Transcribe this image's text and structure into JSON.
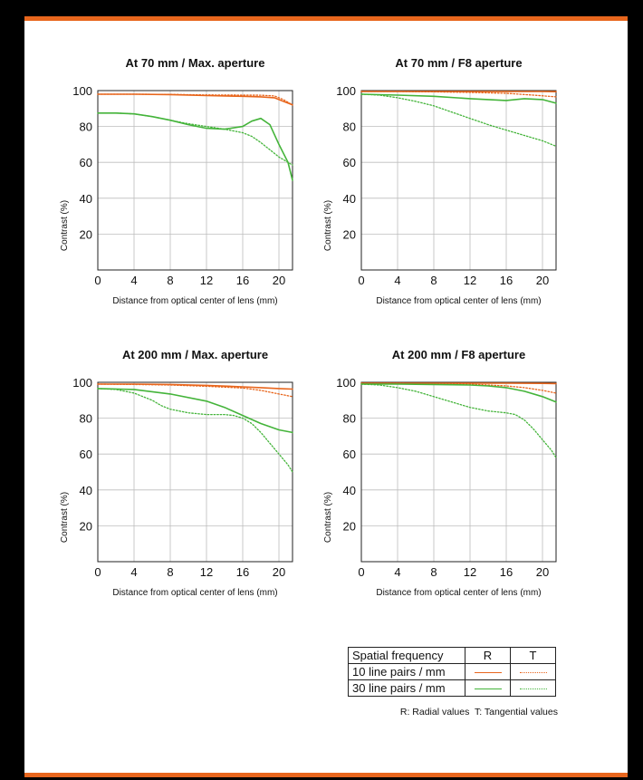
{
  "colors": {
    "accent": "#e8661d",
    "lp10": "#e8661d",
    "lp30": "#44b43a"
  },
  "legend": {
    "header": {
      "freq": "Spatial frequency",
      "r": "R",
      "t": "T"
    },
    "rows": [
      {
        "label": "10 line pairs / mm"
      },
      {
        "label": "30 line pairs / mm"
      }
    ],
    "note": "R: Radial values  T: Tangential values"
  },
  "chart_data": [
    {
      "type": "line",
      "title": "At 70 mm / Max. aperture",
      "xlabel": "Distance from optical center of lens (mm)",
      "ylabel": "Contrast (%)",
      "xlim": [
        0,
        21.5
      ],
      "ylim": [
        0,
        100
      ],
      "xticks": [
        0,
        4,
        8,
        12,
        16,
        20
      ],
      "yticks": [
        20,
        40,
        60,
        80,
        100
      ],
      "grid": true,
      "series": [
        {
          "freq": "10",
          "kind": "R",
          "points": [
            [
              0,
              98
            ],
            [
              4,
              98
            ],
            [
              8,
              97.8
            ],
            [
              12,
              97.2
            ],
            [
              16,
              96.8
            ],
            [
              18,
              96.5
            ],
            [
              19.5,
              96
            ],
            [
              20.5,
              94
            ],
            [
              21.5,
              92
            ]
          ]
        },
        {
          "freq": "10",
          "kind": "T",
          "points": [
            [
              0,
              98
            ],
            [
              4,
              98
            ],
            [
              8,
              97.9
            ],
            [
              12,
              97.6
            ],
            [
              16,
              97.5
            ],
            [
              18,
              97.4
            ],
            [
              19.5,
              97
            ],
            [
              20.5,
              95
            ],
            [
              21.5,
              92
            ]
          ]
        },
        {
          "freq": "30",
          "kind": "R",
          "points": [
            [
              0,
              87.5
            ],
            [
              2,
              87.5
            ],
            [
              4,
              87
            ],
            [
              6,
              85.5
            ],
            [
              8,
              83.5
            ],
            [
              10,
              81
            ],
            [
              12,
              79
            ],
            [
              14,
              78.5
            ],
            [
              16,
              80
            ],
            [
              17,
              83
            ],
            [
              18,
              84.5
            ],
            [
              19,
              81
            ],
            [
              20,
              70
            ],
            [
              21,
              60
            ],
            [
              21.5,
              50
            ]
          ]
        },
        {
          "freq": "30",
          "kind": "T",
          "points": [
            [
              0,
              87.5
            ],
            [
              2,
              87.5
            ],
            [
              4,
              87
            ],
            [
              6,
              85.5
            ],
            [
              8,
              83.5
            ],
            [
              10,
              81.5
            ],
            [
              12,
              80
            ],
            [
              14,
              78.5
            ],
            [
              16,
              76.5
            ],
            [
              17,
              74.5
            ],
            [
              18,
              71
            ],
            [
              19,
              67
            ],
            [
              20,
              63
            ],
            [
              21,
              60
            ],
            [
              21.5,
              58.5
            ]
          ]
        }
      ]
    },
    {
      "type": "line",
      "title": "At 70 mm / F8 aperture",
      "xlabel": "Distance from optical center of lens (mm)",
      "ylabel": "Contrast (%)",
      "xlim": [
        0,
        21.5
      ],
      "ylim": [
        0,
        100
      ],
      "xticks": [
        0,
        4,
        8,
        12,
        16,
        20
      ],
      "yticks": [
        20,
        40,
        60,
        80,
        100
      ],
      "grid": true,
      "series": [
        {
          "freq": "10",
          "kind": "R",
          "points": [
            [
              0,
              99.5
            ],
            [
              4,
              99.5
            ],
            [
              8,
              99.5
            ],
            [
              12,
              99.5
            ],
            [
              16,
              99.5
            ],
            [
              20,
              99.5
            ],
            [
              21.5,
              99.4
            ]
          ]
        },
        {
          "freq": "10",
          "kind": "T",
          "points": [
            [
              0,
              99.5
            ],
            [
              4,
              99.5
            ],
            [
              8,
              99.3
            ],
            [
              12,
              99
            ],
            [
              16,
              98.5
            ],
            [
              19,
              97.5
            ],
            [
              21.5,
              96.5
            ]
          ]
        },
        {
          "freq": "30",
          "kind": "R",
          "points": [
            [
              0,
              98
            ],
            [
              4,
              97.5
            ],
            [
              8,
              96.8
            ],
            [
              12,
              95.5
            ],
            [
              14,
              95
            ],
            [
              16,
              94.5
            ],
            [
              18,
              95.5
            ],
            [
              20,
              95
            ],
            [
              21.5,
              93
            ]
          ]
        },
        {
          "freq": "30",
          "kind": "T",
          "points": [
            [
              0,
              98
            ],
            [
              2,
              97.5
            ],
            [
              4,
              96
            ],
            [
              6,
              94
            ],
            [
              8,
              91.5
            ],
            [
              10,
              88
            ],
            [
              12,
              84.5
            ],
            [
              14,
              81
            ],
            [
              16,
              78
            ],
            [
              18,
              75
            ],
            [
              20,
              72
            ],
            [
              21.5,
              69
            ]
          ]
        }
      ]
    },
    {
      "type": "line",
      "title": "At 200 mm / Max. aperture",
      "xlabel": "Distance from optical center of lens (mm)",
      "ylabel": "Contrast (%)",
      "xlim": [
        0,
        21.5
      ],
      "ylim": [
        0,
        100
      ],
      "xticks": [
        0,
        4,
        8,
        12,
        16,
        20
      ],
      "yticks": [
        20,
        40,
        60,
        80,
        100
      ],
      "grid": true,
      "series": [
        {
          "freq": "10",
          "kind": "R",
          "points": [
            [
              0,
              99
            ],
            [
              4,
              99
            ],
            [
              8,
              98.8
            ],
            [
              12,
              98.3
            ],
            [
              16,
              97.5
            ],
            [
              18,
              97
            ],
            [
              20,
              96.5
            ],
            [
              21.5,
              96.2
            ]
          ]
        },
        {
          "freq": "10",
          "kind": "T",
          "points": [
            [
              0,
              99
            ],
            [
              4,
              98.8
            ],
            [
              8,
              98.5
            ],
            [
              12,
              97.8
            ],
            [
              16,
              96.8
            ],
            [
              18,
              95.5
            ],
            [
              20,
              93.5
            ],
            [
              21.5,
              92
            ]
          ]
        },
        {
          "freq": "30",
          "kind": "R",
          "points": [
            [
              0,
              96.5
            ],
            [
              4,
              96
            ],
            [
              8,
              93.5
            ],
            [
              12,
              89.5
            ],
            [
              14,
              86
            ],
            [
              16,
              81.5
            ],
            [
              18,
              77
            ],
            [
              20,
              73.5
            ],
            [
              21.5,
              72
            ]
          ]
        },
        {
          "freq": "30",
          "kind": "T",
          "points": [
            [
              0,
              96.5
            ],
            [
              2,
              96
            ],
            [
              4,
              94
            ],
            [
              6,
              90
            ],
            [
              7,
              87
            ],
            [
              8,
              85
            ],
            [
              10,
              83
            ],
            [
              12,
              82
            ],
            [
              14,
              82
            ],
            [
              15,
              81.5
            ],
            [
              16,
              80
            ],
            [
              17,
              77
            ],
            [
              18,
              72
            ],
            [
              19,
              66
            ],
            [
              20,
              60
            ],
            [
              21,
              54
            ],
            [
              21.5,
              50
            ]
          ]
        }
      ]
    },
    {
      "type": "line",
      "title": "At 200 mm / F8 aperture",
      "xlabel": "Distance from optical center of lens (mm)",
      "ylabel": "Contrast (%)",
      "xlim": [
        0,
        21.5
      ],
      "ylim": [
        0,
        100
      ],
      "xticks": [
        0,
        4,
        8,
        12,
        16,
        20
      ],
      "yticks": [
        20,
        40,
        60,
        80,
        100
      ],
      "grid": true,
      "series": [
        {
          "freq": "10",
          "kind": "R",
          "points": [
            [
              0,
              99.5
            ],
            [
              4,
              99.5
            ],
            [
              8,
              99.5
            ],
            [
              12,
              99.5
            ],
            [
              16,
              99.5
            ],
            [
              20,
              99.4
            ],
            [
              21.5,
              99.3
            ]
          ]
        },
        {
          "freq": "10",
          "kind": "T",
          "points": [
            [
              0,
              99.5
            ],
            [
              4,
              99.5
            ],
            [
              8,
              99.3
            ],
            [
              12,
              99
            ],
            [
              16,
              98
            ],
            [
              18,
              97
            ],
            [
              20,
              95.5
            ],
            [
              21.5,
              94
            ]
          ]
        },
        {
          "freq": "30",
          "kind": "R",
          "points": [
            [
              0,
              99
            ],
            [
              4,
              99
            ],
            [
              8,
              98.8
            ],
            [
              12,
              98.5
            ],
            [
              14,
              98
            ],
            [
              16,
              97
            ],
            [
              18,
              95
            ],
            [
              20,
              92
            ],
            [
              21.5,
              89
            ]
          ]
        },
        {
          "freq": "30",
          "kind": "T",
          "points": [
            [
              0,
              99
            ],
            [
              2,
              98.5
            ],
            [
              4,
              97
            ],
            [
              6,
              95
            ],
            [
              8,
              92
            ],
            [
              10,
              89
            ],
            [
              12,
              86
            ],
            [
              14,
              84
            ],
            [
              16,
              83
            ],
            [
              17,
              82
            ],
            [
              18,
              79
            ],
            [
              19,
              74
            ],
            [
              20,
              68
            ],
            [
              21,
              62
            ],
            [
              21.5,
              58
            ]
          ]
        }
      ]
    }
  ]
}
